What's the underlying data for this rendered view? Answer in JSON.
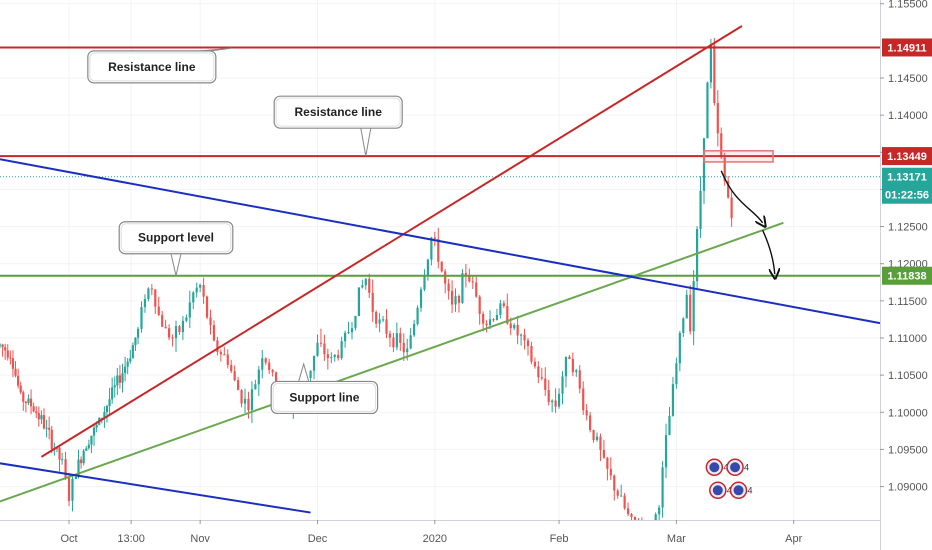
{
  "chart_data": {
    "type": "candlestick",
    "instrument_hint": "EUR/USD",
    "ylim": [
      1.0855,
      1.1555
    ],
    "y_ticks": [
      1.09,
      1.095,
      1.1,
      1.105,
      1.11,
      1.115,
      1.12,
      1.125,
      1.13,
      1.135,
      1.14,
      1.145,
      1.155
    ],
    "y_tick_labels": [
      "1.09000",
      "1.09500",
      "1.10000",
      "1.10500",
      "1.11000",
      "1.11500",
      "1.12000",
      "1.12500",
      "1.13000",
      "1.13500",
      "1.14000",
      "1.14500",
      "1.15500"
    ],
    "x_labels": [
      {
        "label": "Oct",
        "t": 20
      },
      {
        "label": "13:00",
        "t": 38
      },
      {
        "label": "Nov",
        "t": 58
      },
      {
        "label": "Dec",
        "t": 92
      },
      {
        "label": "2020",
        "t": 126
      },
      {
        "label": "Feb",
        "t": 162
      },
      {
        "label": "Mar",
        "t": 196
      },
      {
        "label": "Apr",
        "t": 230
      }
    ],
    "t_range": [
      0,
      255
    ],
    "close_path": [
      [
        0,
        1.109
      ],
      [
        3,
        1.108
      ],
      [
        6,
        1.102
      ],
      [
        9,
        1.101
      ],
      [
        12,
        1.099
      ],
      [
        15,
        1.096
      ],
      [
        18,
        1.093
      ],
      [
        20,
        1.0885
      ],
      [
        22,
        1.092
      ],
      [
        25,
        1.096
      ],
      [
        28,
        1.098
      ],
      [
        31,
        1.101
      ],
      [
        34,
        1.104
      ],
      [
        37,
        1.107
      ],
      [
        40,
        1.111
      ],
      [
        42,
        1.116
      ],
      [
        44,
        1.117
      ],
      [
        46,
        1.113
      ],
      [
        48,
        1.111
      ],
      [
        50,
        1.11
      ],
      [
        52,
        1.111
      ],
      [
        54,
        1.113
      ],
      [
        56,
        1.116
      ],
      [
        58,
        1.117
      ],
      [
        60,
        1.113
      ],
      [
        62,
        1.109
      ],
      [
        64,
        1.108
      ],
      [
        66,
        1.107
      ],
      [
        68,
        1.104
      ],
      [
        70,
        1.102
      ],
      [
        72,
        1.101
      ],
      [
        74,
        1.104
      ],
      [
        76,
        1.108
      ],
      [
        78,
        1.106
      ],
      [
        80,
        1.103
      ],
      [
        82,
        1.102
      ],
      [
        84,
        1.101
      ],
      [
        86,
        1.102
      ],
      [
        88,
        1.104
      ],
      [
        90,
        1.106
      ],
      [
        92,
        1.109
      ],
      [
        94,
        1.108
      ],
      [
        96,
        1.107
      ],
      [
        98,
        1.108
      ],
      [
        100,
        1.11
      ],
      [
        102,
        1.112
      ],
      [
        104,
        1.116
      ],
      [
        106,
        1.118
      ],
      [
        108,
        1.114
      ],
      [
        110,
        1.112
      ],
      [
        112,
        1.111
      ],
      [
        114,
        1.11
      ],
      [
        116,
        1.109
      ],
      [
        118,
        1.108
      ],
      [
        120,
        1.112
      ],
      [
        122,
        1.117
      ],
      [
        124,
        1.121
      ],
      [
        125,
        1.1235
      ],
      [
        127,
        1.121
      ],
      [
        129,
        1.117
      ],
      [
        131,
        1.114
      ],
      [
        133,
        1.116
      ],
      [
        135,
        1.119
      ],
      [
        137,
        1.117
      ],
      [
        139,
        1.114
      ],
      [
        141,
        1.112
      ],
      [
        143,
        1.113
      ],
      [
        145,
        1.114
      ],
      [
        147,
        1.113
      ],
      [
        149,
        1.111
      ],
      [
        151,
        1.11
      ],
      [
        153,
        1.108
      ],
      [
        155,
        1.106
      ],
      [
        157,
        1.104
      ],
      [
        159,
        1.102
      ],
      [
        161,
        1.101
      ],
      [
        163,
        1.105
      ],
      [
        165,
        1.108
      ],
      [
        167,
        1.105
      ],
      [
        169,
        1.101
      ],
      [
        171,
        1.098
      ],
      [
        173,
        1.096
      ],
      [
        175,
        1.093
      ],
      [
        177,
        1.091
      ],
      [
        179,
        1.089
      ],
      [
        181,
        1.087
      ],
      [
        183,
        1.085
      ],
      [
        185,
        1.0845
      ],
      [
        187,
        1.083
      ],
      [
        189,
        1.084
      ],
      [
        191,
        1.088
      ],
      [
        193,
        1.096
      ],
      [
        195,
        1.103
      ],
      [
        197,
        1.11
      ],
      [
        199,
        1.116
      ],
      [
        200,
        1.112
      ],
      [
        201,
        1.118
      ],
      [
        202,
        1.124
      ],
      [
        203,
        1.13
      ],
      [
        204,
        1.138
      ],
      [
        205,
        1.144
      ],
      [
        206,
        1.149
      ],
      [
        207,
        1.141
      ],
      [
        208,
        1.137
      ],
      [
        209,
        1.134
      ],
      [
        210,
        1.131
      ],
      [
        211,
        1.129
      ],
      [
        212,
        1.127
      ]
    ],
    "horizontal_levels": [
      {
        "value": 1.14911,
        "label": "1.14911",
        "color": "#c62828"
      },
      {
        "value": 1.13449,
        "label": "1.13449",
        "color": "#c62828"
      },
      {
        "value": 1.11838,
        "label": "1.11838",
        "color": "#5a9e3a"
      }
    ],
    "current_price": {
      "value": 1.13171,
      "label": "1.13171",
      "countdown": "01:22:56",
      "color": "#26a69a"
    },
    "trend_lines": [
      {
        "name": "resistance-trend",
        "color": "#c62828",
        "points": [
          [
            12,
            1.094
          ],
          [
            215,
            1.152
          ]
        ]
      },
      {
        "name": "support-trend",
        "color": "#6aa84f",
        "points": [
          [
            0,
            1.088
          ],
          [
            227,
            1.1255
          ]
        ]
      },
      {
        "name": "upper-channel",
        "color": "#1a2fbf",
        "points": [
          [
            -5,
            1.1345
          ],
          [
            255,
            1.112
          ]
        ]
      },
      {
        "name": "lower-channel",
        "color": "#1a2fbf",
        "points": [
          [
            -5,
            1.0935
          ],
          [
            90,
            1.0865
          ]
        ]
      }
    ],
    "annotations": [
      {
        "text": "Resistance line",
        "t": 44,
        "price": 1.1465,
        "pointer": [
          [
            67,
            1.149
          ]
        ]
      },
      {
        "text": "Resistance line",
        "t": 98,
        "price": 1.1404,
        "pointer": [
          [
            106,
            1.1345
          ]
        ]
      },
      {
        "text": "Support level",
        "t": 51,
        "price": 1.1235,
        "pointer": [
          [
            51,
            1.1184
          ]
        ]
      },
      {
        "text": "Support line",
        "t": 94,
        "price": 1.102,
        "pointer": [
          [
            88,
            1.1065
          ]
        ]
      }
    ],
    "highlight_box": {
      "t1": 204,
      "t2": 224,
      "p1": 1.1352,
      "p2": 1.1337,
      "color": "#e57373"
    },
    "projection_arrows": [
      {
        "points": [
          [
            209,
            1.1325
          ],
          [
            213,
            1.128
          ],
          [
            218,
            1.1275
          ],
          [
            221,
            1.1255
          ]
        ]
      },
      {
        "points": [
          [
            221,
            1.1245
          ],
          [
            224,
            1.1215
          ],
          [
            224.5,
            1.1186
          ]
        ]
      }
    ],
    "emoji_badges": [
      {
        "text": "4",
        "t": 207,
        "price": 1.0926
      },
      {
        "text": "4",
        "t": 213,
        "price": 1.0926
      },
      {
        "text": "4 3",
        "t": 208,
        "price": 1.0895
      },
      {
        "text": "4",
        "t": 214,
        "price": 1.0895
      }
    ]
  }
}
